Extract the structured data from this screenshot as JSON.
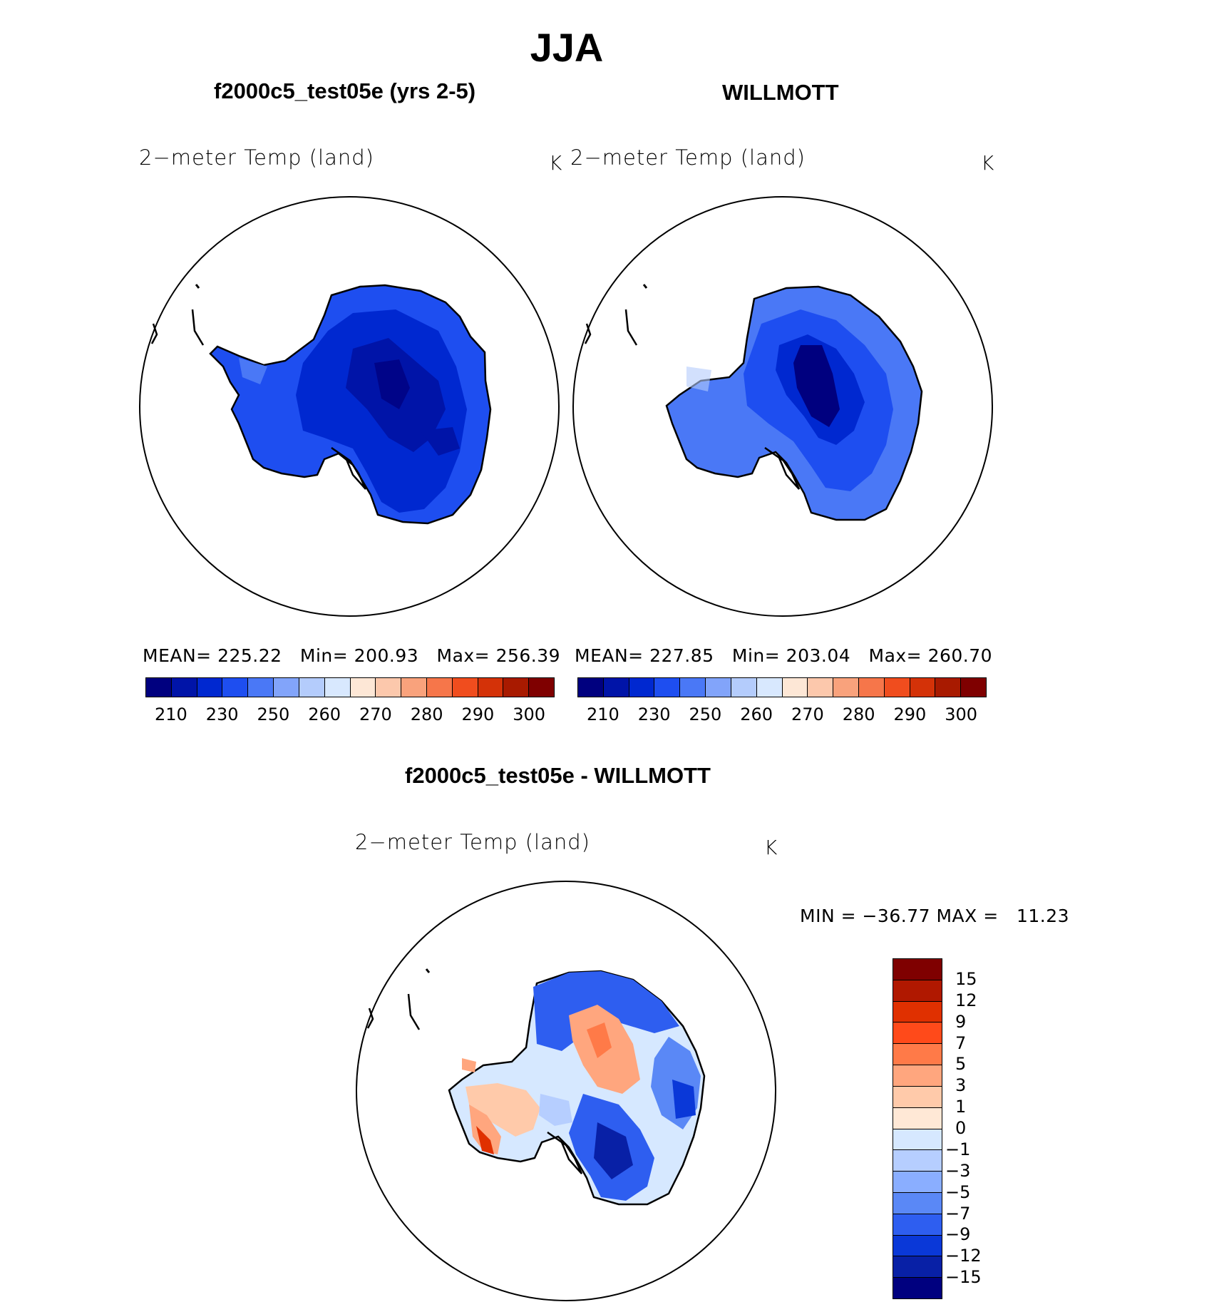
{
  "figure": {
    "season_title": "JJA",
    "difference_title": "f2000c5_test05e - WILLMOTT"
  },
  "panels": [
    {
      "title": "f2000c5_test05e (yrs 2-5)",
      "variable_label": "2−meter Temp (land)",
      "units": "K",
      "stats": {
        "mean_label": "MEAN=",
        "mean": "225.22",
        "min_label": "Min=",
        "min": "200.93",
        "max_label": "Max=",
        "max": "256.39"
      },
      "colorbar_ticks": [
        "210",
        "230",
        "250",
        "260",
        "270",
        "280",
        "290",
        "300"
      ]
    },
    {
      "title": "WILLMOTT",
      "variable_label": "2−meter Temp (land)",
      "units": "K",
      "stats": {
        "mean_label": "MEAN=",
        "mean": "227.85",
        "min_label": "Min=",
        "min": "203.04",
        "max_label": "Max=",
        "max": "260.70"
      },
      "colorbar_ticks": [
        "210",
        "230",
        "250",
        "260",
        "270",
        "280",
        "290",
        "300"
      ]
    }
  ],
  "difference_panel": {
    "variable_label": "2−meter Temp (land)",
    "units": "K",
    "min_max_text": "MIN = −36.77 MAX =   11.23",
    "colorbar_ticks": [
      "15",
      "12",
      "9",
      "7",
      "5",
      "3",
      "1",
      "0",
      "−1",
      "−3",
      "−5",
      "−7",
      "−9",
      "−12",
      "−15"
    ]
  },
  "colors": {
    "abs_scale": [
      "#00007f",
      "#0014a8",
      "#0028d0",
      "#1e4ef0",
      "#4a78f6",
      "#82a4fa",
      "#b4ccfc",
      "#d8e8fe",
      "#fde7d6",
      "#fcc8ac",
      "#f9a27c",
      "#f6764a",
      "#f04d1e",
      "#d43208",
      "#a81a00",
      "#7f0000"
    ],
    "diff_scale": [
      "#7f0000",
      "#b01800",
      "#e03000",
      "#ff4a1a",
      "#ff7a48",
      "#ffa67e",
      "#ffcaaa",
      "#ffe8d6",
      "#d6e8ff",
      "#b6ceff",
      "#8aaeff",
      "#5a88f6",
      "#2e5ef0",
      "#0a38d8",
      "#0820a6",
      "#00007f"
    ]
  }
}
